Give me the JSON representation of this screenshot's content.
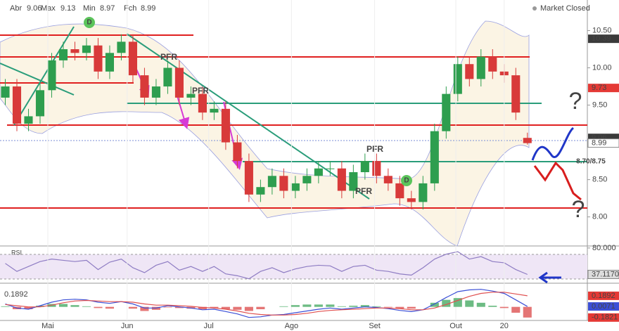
{
  "header": {
    "ohlc_labels": [
      "Abr",
      "Max",
      "Min",
      "Fch"
    ],
    "status": "Market Closed"
  },
  "chart_data": [
    {
      "type": "candlestick",
      "x": [
        1,
        4,
        7,
        10,
        13,
        16,
        19,
        22,
        25,
        28,
        31,
        34,
        37,
        40,
        43,
        46,
        49,
        52,
        55,
        58,
        61,
        64,
        67,
        70,
        73,
        76,
        79,
        82,
        85,
        88,
        91,
        94,
        97,
        100,
        103,
        106,
        109,
        112,
        115,
        118,
        121,
        124,
        127,
        130,
        133,
        136
      ],
      "open": [
        9.6,
        9.75,
        9.25,
        9.35,
        9.7,
        10.1,
        10.25,
        10.2,
        10.3,
        9.95,
        10.2,
        10.35,
        9.9,
        9.6,
        9.75,
        10.0,
        9.6,
        9.65,
        9.4,
        9.45,
        9.0,
        8.75,
        8.3,
        8.4,
        8.55,
        8.35,
        8.45,
        8.55,
        8.65,
        8.65,
        8.35,
        8.6,
        8.75,
        8.55,
        8.45,
        8.25,
        8.2,
        8.45,
        9.15,
        9.65,
        10.05,
        9.85,
        10.15,
        9.95,
        9.9,
        9.06
      ],
      "high": [
        9.85,
        9.85,
        9.45,
        9.8,
        10.2,
        10.35,
        10.35,
        10.4,
        10.4,
        10.3,
        10.45,
        10.45,
        10.0,
        9.85,
        10.1,
        10.1,
        9.75,
        9.75,
        9.55,
        9.55,
        9.1,
        8.85,
        8.5,
        8.65,
        8.65,
        8.55,
        8.65,
        8.75,
        8.75,
        8.75,
        8.7,
        8.85,
        8.85,
        8.65,
        8.55,
        8.35,
        8.55,
        9.25,
        9.75,
        10.15,
        10.15,
        10.25,
        10.25,
        10.05,
        10.0,
        9.13
      ],
      "low": [
        9.5,
        9.15,
        9.15,
        9.25,
        9.6,
        10.0,
        10.1,
        10.1,
        9.85,
        9.85,
        10.1,
        9.8,
        9.5,
        9.5,
        9.65,
        9.5,
        9.5,
        9.3,
        9.3,
        8.9,
        8.65,
        8.2,
        8.2,
        8.3,
        8.25,
        8.25,
        8.35,
        8.45,
        8.55,
        8.25,
        8.25,
        8.5,
        8.45,
        8.35,
        8.15,
        8.1,
        8.1,
        8.35,
        9.05,
        9.55,
        9.75,
        9.75,
        9.85,
        9.8,
        9.3,
        8.97
      ],
      "close": [
        9.75,
        9.25,
        9.35,
        9.7,
        10.1,
        10.25,
        10.2,
        10.3,
        9.95,
        10.2,
        10.35,
        9.9,
        9.6,
        9.75,
        10.0,
        9.6,
        9.65,
        9.4,
        9.45,
        9.0,
        8.75,
        8.3,
        8.4,
        8.55,
        8.35,
        8.45,
        8.55,
        8.65,
        8.65,
        8.35,
        8.6,
        8.75,
        8.55,
        8.45,
        8.25,
        8.2,
        8.45,
        9.15,
        9.65,
        10.05,
        9.85,
        10.15,
        9.95,
        9.9,
        9.4,
        8.99
      ],
      "up_color": "#2e9e4f",
      "down_color": "#d83a3a",
      "xlim": [
        0,
        151.5
      ],
      "ylim": [
        7.61,
        10.91
      ],
      "yticks": [
        {
          "value": 10.5,
          "label": "10.50"
        },
        {
          "value": 10,
          "label": "10.00"
        },
        {
          "value": 9.5,
          "label": "9.50"
        },
        {
          "value": 9,
          "label": "9.00"
        },
        {
          "value": 8.5,
          "label": "8.50"
        },
        {
          "value": 8,
          "label": "8.00"
        }
      ],
      "markers": [
        {
          "value": 10.39,
          "color": "#3a3a3a"
        },
        {
          "value": 9.73,
          "color": "#e53935"
        },
        {
          "value": 9.06,
          "color": "#3a3a3a"
        },
        {
          "value": 8.99,
          "color": "#ffffff"
        }
      ],
      "annotations": [
        "PFR",
        "PFR",
        "PFR",
        "PFR",
        "D",
        "D",
        "?",
        "?",
        "8.70/8.75"
      ]
    },
    {
      "type": "line",
      "title": "RSI",
      "x": [
        1,
        4,
        7,
        10,
        13,
        16,
        19,
        22,
        25,
        28,
        31,
        34,
        37,
        40,
        43,
        46,
        49,
        52,
        55,
        58,
        61,
        64,
        67,
        70,
        73,
        76,
        79,
        82,
        85,
        88,
        91,
        94,
        97,
        100,
        103,
        106,
        109,
        112,
        115,
        118,
        121,
        124,
        127,
        130,
        133,
        136
      ],
      "series": [
        {
          "color": "#8e7cc3",
          "values": [
            55,
            42,
            50,
            58,
            62,
            60,
            58,
            60,
            45,
            57,
            62,
            48,
            40,
            52,
            58,
            44,
            50,
            42,
            50,
            38,
            35,
            30,
            42,
            48,
            40,
            46,
            50,
            52,
            51,
            42,
            50,
            52,
            44,
            42,
            38,
            36,
            48,
            62,
            70,
            74,
            62,
            66,
            58,
            56,
            45,
            37.117
          ]
        }
      ],
      "xlim": [
        0,
        151.5
      ],
      "ylim": [
        24,
        81
      ],
      "yticks": [
        {
          "value": 80,
          "label": "80.000"
        }
      ],
      "markers": [
        {
          "value": 37.117,
          "label": "37.1170",
          "color": "#dddddd"
        }
      ]
    },
    {
      "type": "macd",
      "title": "0.1892",
      "x": [
        1,
        4,
        7,
        10,
        13,
        16,
        19,
        22,
        25,
        28,
        31,
        34,
        37,
        40,
        43,
        46,
        49,
        52,
        55,
        58,
        61,
        64,
        67,
        70,
        73,
        76,
        79,
        82,
        85,
        88,
        91,
        94,
        97,
        100,
        103,
        106,
        109,
        112,
        115,
        118,
        121,
        124,
        127,
        130,
        133,
        136
      ],
      "series": [
        {
          "color": "#3b4fd6",
          "values": [
            0.05,
            -0.02,
            -0.04,
            0.02,
            0.08,
            0.12,
            0.13,
            0.12,
            0.08,
            0.06,
            0.09,
            0.05,
            -0.02,
            -0.02,
            0.02,
            0.0,
            -0.02,
            -0.05,
            -0.04,
            -0.08,
            -0.12,
            -0.18,
            -0.17,
            -0.14,
            -0.13,
            -0.1,
            -0.07,
            -0.04,
            -0.02,
            -0.04,
            -0.02,
            0.0,
            -0.01,
            -0.03,
            -0.06,
            -0.08,
            -0.05,
            0.05,
            0.16,
            0.26,
            0.29,
            0.3,
            0.27,
            0.23,
            0.12,
            0.0071
          ]
        },
        {
          "color": "#e05050",
          "values": [
            0.04,
            0.02,
            0.0,
            0.0,
            0.03,
            0.07,
            0.1,
            0.11,
            0.1,
            0.09,
            0.09,
            0.08,
            0.05,
            0.03,
            0.03,
            0.02,
            0.01,
            -0.01,
            -0.02,
            -0.04,
            -0.07,
            -0.11,
            -0.13,
            -0.14,
            -0.14,
            -0.13,
            -0.11,
            -0.08,
            -0.06,
            -0.05,
            -0.04,
            -0.03,
            -0.02,
            -0.02,
            -0.03,
            -0.05,
            -0.05,
            -0.02,
            0.04,
            0.11,
            0.18,
            0.23,
            0.25,
            0.25,
            0.22,
            0.1892
          ]
        }
      ],
      "histogram": [
        0.01,
        -0.04,
        -0.04,
        0.02,
        0.05,
        0.05,
        0.03,
        0.01,
        -0.02,
        -0.03,
        0,
        -0.03,
        -0.07,
        -0.05,
        -0.01,
        -0.02,
        -0.03,
        -0.04,
        -0.02,
        -0.04,
        -0.05,
        -0.07,
        -0.04,
        0,
        0.01,
        0.03,
        0.04,
        0.04,
        0.04,
        0.01,
        0.02,
        0.03,
        0.01,
        -0.01,
        -0.03,
        -0.03,
        0,
        0.07,
        0.12,
        0.15,
        0.11,
        0.07,
        0.02,
        -0.02,
        -0.1,
        -0.1821
      ],
      "hist_up_color": "#2e9e4f",
      "hist_down_color": "#d83a3a",
      "xlim": [
        0,
        151.5
      ],
      "ylim": [
        -0.22,
        0.38
      ],
      "xticks": [
        {
          "value": 12,
          "label": "Mai"
        },
        {
          "value": 32.5,
          "label": "Jun"
        },
        {
          "value": 53.6,
          "label": "Jul"
        },
        {
          "value": 75,
          "label": "Ago"
        },
        {
          "value": 96.5,
          "label": "Set"
        },
        {
          "value": 117.5,
          "label": "Out"
        },
        {
          "value": 130,
          "label": "20"
        }
      ],
      "markers": [
        {
          "value": 0.1892,
          "color": "#e53935"
        },
        {
          "value": 0.0071,
          "color": "#3b4fd6"
        },
        {
          "value": -0.1821,
          "color": "#e53935"
        }
      ]
    }
  ]
}
